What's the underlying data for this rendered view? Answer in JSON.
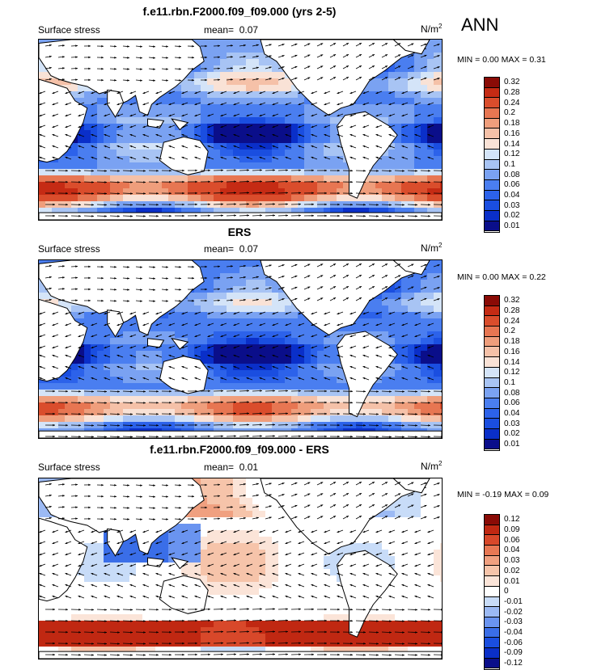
{
  "season": "ANN",
  "panels": [
    {
      "title": "f.e11.rbn.F2000.f09_f09.000 (yrs 2-5)",
      "left_label": "Surface stress",
      "mean_label": "mean=",
      "mean_value": "0.07",
      "units_base": "N/m",
      "units_exp": "2",
      "min_label": "MIN =",
      "min_value": "0.00",
      "max_label": "MAX =",
      "max_value": "0.31",
      "kind": "model",
      "colorbar_labels": [
        "0.32",
        "0.28",
        "0.24",
        "0.2",
        "0.18",
        "0.16",
        "0.14",
        "0.12",
        "0.1",
        "0.08",
        "0.06",
        "0.04",
        "0.03",
        "0.02",
        "0.01"
      ]
    },
    {
      "title": "ERS",
      "left_label": "Surface stress",
      "mean_label": "mean=",
      "mean_value": "0.07",
      "units_base": "N/m",
      "units_exp": "2",
      "min_label": "MIN =",
      "min_value": "0.00",
      "max_label": "MAX =",
      "max_value": "0.22",
      "kind": "obs",
      "colorbar_labels": [
        "0.32",
        "0.28",
        "0.24",
        "0.2",
        "0.18",
        "0.16",
        "0.14",
        "0.12",
        "0.1",
        "0.08",
        "0.06",
        "0.04",
        "0.03",
        "0.02",
        "0.01"
      ]
    },
    {
      "title": "f.e11.rbn.F2000.f09_f09.000 - ERS",
      "left_label": "Surface stress",
      "mean_label": "mean=",
      "mean_value": "0.01",
      "units_base": "N/m",
      "units_exp": "2",
      "min_label": "MIN =",
      "min_value": "-0.19",
      "max_label": "MAX =",
      "max_value": "0.09",
      "kind": "diff",
      "colorbar_labels": [
        "0.12",
        "0.09",
        "0.06",
        "0.04",
        "0.03",
        "0.02",
        "0.01",
        "0",
        "-0.01",
        "-0.02",
        "-0.03",
        "-0.04",
        "-0.06",
        "-0.09",
        "-0.12"
      ]
    }
  ],
  "colors": {
    "magnitude_scale": [
      "#0a0e8a",
      "#0a2fc9",
      "#1a4ee0",
      "#2c62ea",
      "#4a7ef0",
      "#7aa2f2",
      "#a8c4f4",
      "#d4e4f8",
      "#f9e2d6",
      "#f5c1a8",
      "#ef9e7c",
      "#e77652",
      "#da4d2c",
      "#c52b14",
      "#8a0b06"
    ],
    "diff_scale": [
      "#0a0e8a",
      "#0a2fc9",
      "#1a4ee0",
      "#3a6ee8",
      "#6a94f0",
      "#9cbaf4",
      "#c8dcf8",
      "#ffffff",
      "#fbe4d8",
      "#f6c4aa",
      "#f0a080",
      "#e87854",
      "#d8482a",
      "#c02812",
      "#8a0b06"
    ],
    "land": "#ffffff",
    "coast": "#000000"
  }
}
